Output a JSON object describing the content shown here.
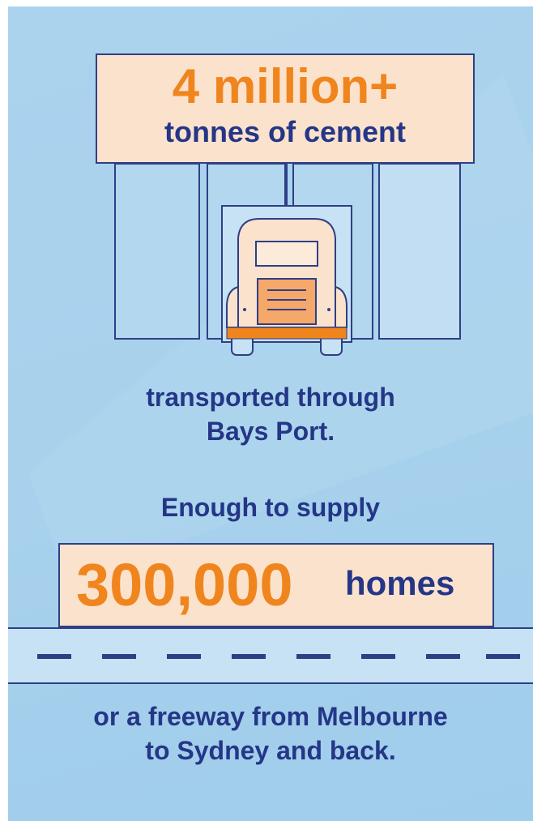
{
  "headline": {
    "amount": "4 million+",
    "unit": "tonnes of cement"
  },
  "transport": {
    "line1": "transported through",
    "line2": "Bays Port."
  },
  "supply": {
    "intro": "Enough to supply",
    "amount": "300,000",
    "unit": "homes"
  },
  "freeway": {
    "line1": "or a freeway from Melbourne",
    "line2": "to Sydney and back."
  },
  "colors": {
    "background": "#a9d2ed",
    "orange": "#f0851e",
    "navy": "#253687",
    "cream": "#fbe2cc"
  },
  "icons": [
    "warehouse-icon",
    "truck-icon",
    "road-icon"
  ]
}
